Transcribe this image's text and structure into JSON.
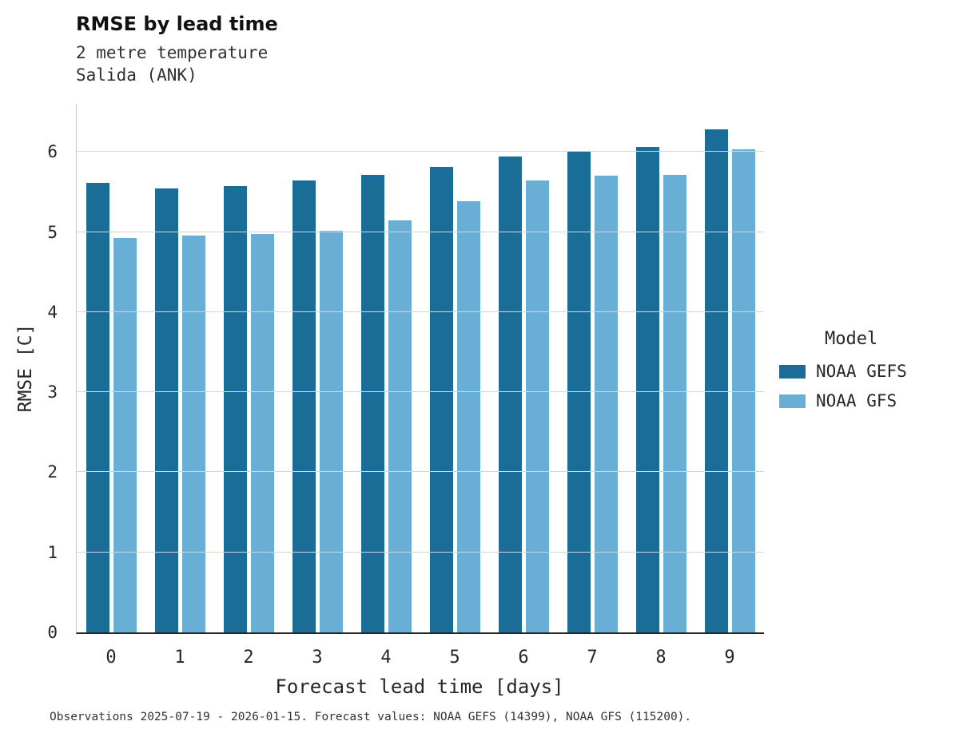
{
  "header": {
    "title": "RMSE by lead time",
    "subtitle_line1": "2 metre temperature",
    "subtitle_line2": "Salida (ANK)"
  },
  "axes": {
    "x_label": "Forecast lead time [days]",
    "y_label": "RMSE [C]"
  },
  "legend": {
    "title": "Model"
  },
  "caption": "Observations 2025-07-19 - 2026-01-15. Forecast values: NOAA GEFS (14399), NOAA GFS (115200).",
  "chart_data": {
    "type": "bar",
    "title": "RMSE by lead time",
    "subtitle": [
      "2 metre temperature",
      "Salida (ANK)"
    ],
    "xlabel": "Forecast lead time [days]",
    "ylabel": "RMSE [C]",
    "categories": [
      "0",
      "1",
      "2",
      "3",
      "4",
      "5",
      "6",
      "7",
      "8",
      "9"
    ],
    "series": [
      {
        "name": "NOAA GEFS",
        "color": "#1a6d96",
        "values": [
          5.61,
          5.54,
          5.57,
          5.64,
          5.71,
          5.81,
          5.94,
          6.01,
          6.06,
          6.28
        ]
      },
      {
        "name": "NOAA GFS",
        "color": "#69aed5",
        "values": [
          4.93,
          4.96,
          4.98,
          5.01,
          5.14,
          5.38,
          5.64,
          5.7,
          5.71,
          6.03
        ]
      }
    ],
    "yticks": [
      0,
      1,
      2,
      3,
      4,
      5,
      6
    ],
    "ylim": [
      0,
      6.6
    ],
    "grid": "horizontal",
    "legend_title": "Model",
    "legend_position": "right"
  }
}
